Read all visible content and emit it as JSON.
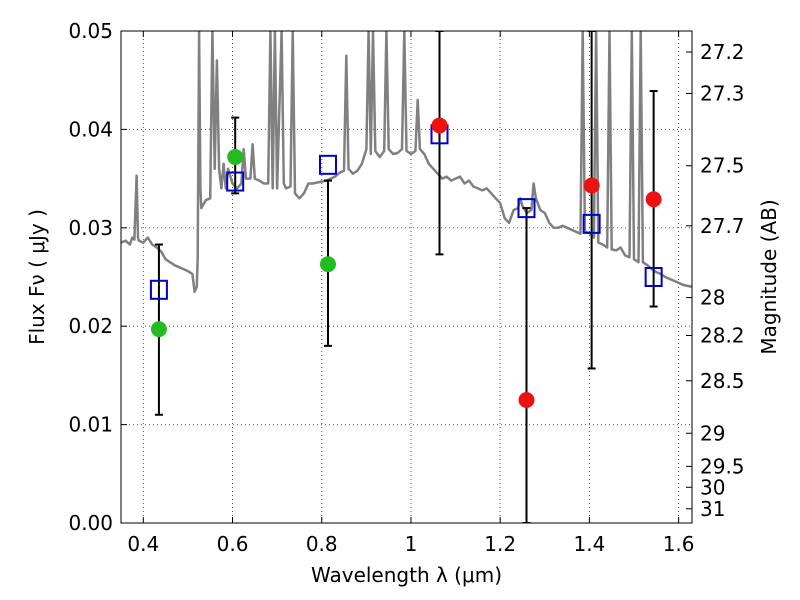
{
  "chart_data": {
    "type": "scatter",
    "xlabel": "Wavelength  λ (μm)",
    "ylabel": "Flux  Fν  ( μJy )",
    "ylabel_right": "Magnitude (AB)",
    "xlim": [
      0.35,
      1.63
    ],
    "ylim": [
      0.0,
      0.05
    ],
    "grid": true,
    "x_ticks": [
      {
        "value": 0.4,
        "label": "0.4"
      },
      {
        "value": 0.6,
        "label": "0.6"
      },
      {
        "value": 0.8,
        "label": "0.8"
      },
      {
        "value": 1.0,
        "label": "1"
      },
      {
        "value": 1.2,
        "label": "1.2"
      },
      {
        "value": 1.4,
        "label": "1.4"
      },
      {
        "value": 1.6,
        "label": "1.6"
      }
    ],
    "y_ticks": [
      {
        "value": 0.0,
        "label": "0.00"
      },
      {
        "value": 0.01,
        "label": "0.01"
      },
      {
        "value": 0.02,
        "label": "0.02"
      },
      {
        "value": 0.03,
        "label": "0.03"
      },
      {
        "value": 0.04,
        "label": "0.04"
      },
      {
        "value": 0.05,
        "label": "0.05"
      }
    ],
    "right_ticks": [
      {
        "mag": 27.2,
        "label": "27.2"
      },
      {
        "mag": 27.3,
        "label": "27.3"
      },
      {
        "mag": 27.5,
        "label": "27.5"
      },
      {
        "mag": 27.7,
        "label": "27.7"
      },
      {
        "mag": 28,
        "label": "28"
      },
      {
        "mag": 28.2,
        "label": "28.2"
      },
      {
        "mag": 28.5,
        "label": "28.5"
      },
      {
        "mag": 29,
        "label": "29"
      },
      {
        "mag": 29.5,
        "label": "29.5"
      },
      {
        "mag": 30,
        "label": "30"
      },
      {
        "mag": 31,
        "label": "31"
      }
    ],
    "colors": {
      "spectrum": "#808080",
      "detected": "#22bb22",
      "undetected": "#ee1111",
      "model": "#0000cc",
      "errorbar": "#000000",
      "grid": "#555555"
    },
    "series": [
      {
        "kind": "spectrum",
        "points": [
          [
            0.35,
            0.0285
          ],
          [
            0.36,
            0.0287
          ],
          [
            0.37,
            0.0283
          ],
          [
            0.375,
            0.029
          ],
          [
            0.38,
            0.0288
          ],
          [
            0.385,
            0.0353
          ],
          [
            0.388,
            0.029
          ],
          [
            0.39,
            0.0287
          ],
          [
            0.4,
            0.0285
          ],
          [
            0.41,
            0.029
          ],
          [
            0.42,
            0.0283
          ],
          [
            0.43,
            0.028
          ],
          [
            0.44,
            0.0276
          ],
          [
            0.45,
            0.0268
          ],
          [
            0.46,
            0.0265
          ],
          [
            0.47,
            0.0262
          ],
          [
            0.48,
            0.026
          ],
          [
            0.49,
            0.0258
          ],
          [
            0.5,
            0.0256
          ],
          [
            0.51,
            0.0253
          ],
          [
            0.515,
            0.0235
          ],
          [
            0.52,
            0.024
          ],
          [
            0.522,
            0.027
          ],
          [
            0.525,
            0.05
          ],
          [
            0.528,
            0.034
          ],
          [
            0.53,
            0.032
          ],
          [
            0.54,
            0.0328
          ],
          [
            0.55,
            0.033
          ],
          [
            0.555,
            0.05
          ],
          [
            0.56,
            0.036
          ],
          [
            0.565,
            0.047
          ],
          [
            0.57,
            0.036
          ],
          [
            0.575,
            0.034
          ],
          [
            0.58,
            0.0365
          ],
          [
            0.585,
            0.034
          ],
          [
            0.59,
            0.036
          ],
          [
            0.6,
            0.0345
          ],
          [
            0.61,
            0.034
          ],
          [
            0.62,
            0.0345
          ],
          [
            0.625,
            0.038
          ],
          [
            0.63,
            0.035
          ],
          [
            0.64,
            0.035
          ],
          [
            0.645,
            0.0385
          ],
          [
            0.65,
            0.035
          ],
          [
            0.66,
            0.0348
          ],
          [
            0.67,
            0.0345
          ],
          [
            0.68,
            0.0345
          ],
          [
            0.685,
            0.05
          ],
          [
            0.69,
            0.034
          ],
          [
            0.695,
            0.05
          ],
          [
            0.7,
            0.034
          ],
          [
            0.71,
            0.05
          ],
          [
            0.715,
            0.0345
          ],
          [
            0.72,
            0.034
          ],
          [
            0.73,
            0.0342
          ],
          [
            0.735,
            0.05
          ],
          [
            0.74,
            0.0335
          ],
          [
            0.75,
            0.033
          ],
          [
            0.76,
            0.0335
          ],
          [
            0.77,
            0.0345
          ],
          [
            0.78,
            0.0345
          ],
          [
            0.79,
            0.0346
          ],
          [
            0.8,
            0.0347
          ],
          [
            0.81,
            0.0348
          ],
          [
            0.82,
            0.035
          ],
          [
            0.83,
            0.0352
          ],
          [
            0.84,
            0.0356
          ],
          [
            0.85,
            0.0358
          ],
          [
            0.855,
            0.0475
          ],
          [
            0.86,
            0.036
          ],
          [
            0.87,
            0.0355
          ],
          [
            0.88,
            0.0358
          ],
          [
            0.89,
            0.0365
          ],
          [
            0.9,
            0.038
          ],
          [
            0.905,
            0.05
          ],
          [
            0.91,
            0.0375
          ],
          [
            0.915,
            0.05
          ],
          [
            0.92,
            0.0378
          ],
          [
            0.93,
            0.0372
          ],
          [
            0.94,
            0.0378
          ],
          [
            0.945,
            0.05
          ],
          [
            0.95,
            0.038
          ],
          [
            0.96,
            0.0375
          ],
          [
            0.97,
            0.0376
          ],
          [
            0.98,
            0.038
          ],
          [
            0.985,
            0.05
          ],
          [
            0.99,
            0.0378
          ],
          [
            1.0,
            0.0375
          ],
          [
            1.01,
            0.0378
          ],
          [
            1.015,
            0.043
          ],
          [
            1.02,
            0.038
          ],
          [
            1.03,
            0.0375
          ],
          [
            1.04,
            0.0365
          ],
          [
            1.05,
            0.036
          ],
          [
            1.06,
            0.0355
          ],
          [
            1.07,
            0.035
          ],
          [
            1.08,
            0.0352
          ],
          [
            1.09,
            0.0348
          ],
          [
            1.1,
            0.035
          ],
          [
            1.11,
            0.0352
          ],
          [
            1.12,
            0.0345
          ],
          [
            1.13,
            0.0348
          ],
          [
            1.14,
            0.0342
          ],
          [
            1.15,
            0.034
          ],
          [
            1.16,
            0.0338
          ],
          [
            1.17,
            0.034
          ],
          [
            1.18,
            0.0335
          ],
          [
            1.19,
            0.033
          ],
          [
            1.2,
            0.0325
          ],
          [
            1.21,
            0.031
          ],
          [
            1.22,
            0.0305
          ],
          [
            1.23,
            0.0318
          ],
          [
            1.24,
            0.032
          ],
          [
            1.245,
            0.033
          ],
          [
            1.25,
            0.0322
          ],
          [
            1.26,
            0.0315
          ],
          [
            1.27,
            0.0318
          ],
          [
            1.275,
            0.0345
          ],
          [
            1.28,
            0.033
          ],
          [
            1.29,
            0.0318
          ],
          [
            1.3,
            0.0315
          ],
          [
            1.31,
            0.0305
          ],
          [
            1.32,
            0.03
          ],
          [
            1.33,
            0.03
          ],
          [
            1.34,
            0.0302
          ],
          [
            1.35,
            0.03
          ],
          [
            1.36,
            0.0298
          ],
          [
            1.37,
            0.0296
          ],
          [
            1.38,
            0.0294
          ],
          [
            1.385,
            0.05
          ],
          [
            1.39,
            0.0296
          ],
          [
            1.4,
            0.0295
          ],
          [
            1.41,
            0.029
          ],
          [
            1.415,
            0.05
          ],
          [
            1.42,
            0.0285
          ],
          [
            1.43,
            0.0283
          ],
          [
            1.44,
            0.028
          ],
          [
            1.445,
            0.05
          ],
          [
            1.45,
            0.0278
          ],
          [
            1.46,
            0.0277
          ],
          [
            1.47,
            0.028
          ],
          [
            1.48,
            0.0272
          ],
          [
            1.49,
            0.027
          ],
          [
            1.495,
            0.05
          ],
          [
            1.5,
            0.0268
          ],
          [
            1.51,
            0.0265
          ],
          [
            1.515,
            0.05
          ],
          [
            1.52,
            0.0265
          ],
          [
            1.53,
            0.0262
          ],
          [
            1.54,
            0.0258
          ],
          [
            1.55,
            0.0255
          ],
          [
            1.56,
            0.0253
          ],
          [
            1.57,
            0.025
          ],
          [
            1.58,
            0.0248
          ],
          [
            1.59,
            0.0246
          ],
          [
            1.6,
            0.0244
          ],
          [
            1.61,
            0.0242
          ],
          [
            1.62,
            0.0241
          ],
          [
            1.63,
            0.024
          ]
        ]
      },
      {
        "kind": "model_squares",
        "points": [
          {
            "x": 0.435,
            "y": 0.0237
          },
          {
            "x": 0.606,
            "y": 0.0347
          },
          {
            "x": 0.814,
            "y": 0.0364
          },
          {
            "x": 1.064,
            "y": 0.0395
          },
          {
            "x": 1.259,
            "y": 0.032
          },
          {
            "x": 1.405,
            "y": 0.0304
          },
          {
            "x": 1.544,
            "y": 0.025
          }
        ]
      },
      {
        "kind": "detected",
        "points": [
          {
            "x": 0.435,
            "y": 0.0197,
            "lo": 0.011,
            "hi": 0.0283
          },
          {
            "x": 0.606,
            "y": 0.0372,
            "lo": 0.0335,
            "hi": 0.0412
          },
          {
            "x": 0.814,
            "y": 0.0263,
            "lo": 0.018,
            "hi": 0.0348
          }
        ]
      },
      {
        "kind": "undetected",
        "points": [
          {
            "x": 1.064,
            "y": 0.0404,
            "lo": 0.0273,
            "hi": 0.05
          },
          {
            "x": 1.259,
            "y": 0.0125,
            "lo": 0.0,
            "hi": 0.032
          },
          {
            "x": 1.405,
            "y": 0.0343,
            "lo": 0.0157,
            "hi": 0.05
          },
          {
            "x": 1.544,
            "y": 0.0329,
            "lo": 0.022,
            "hi": 0.0439
          }
        ]
      }
    ]
  }
}
